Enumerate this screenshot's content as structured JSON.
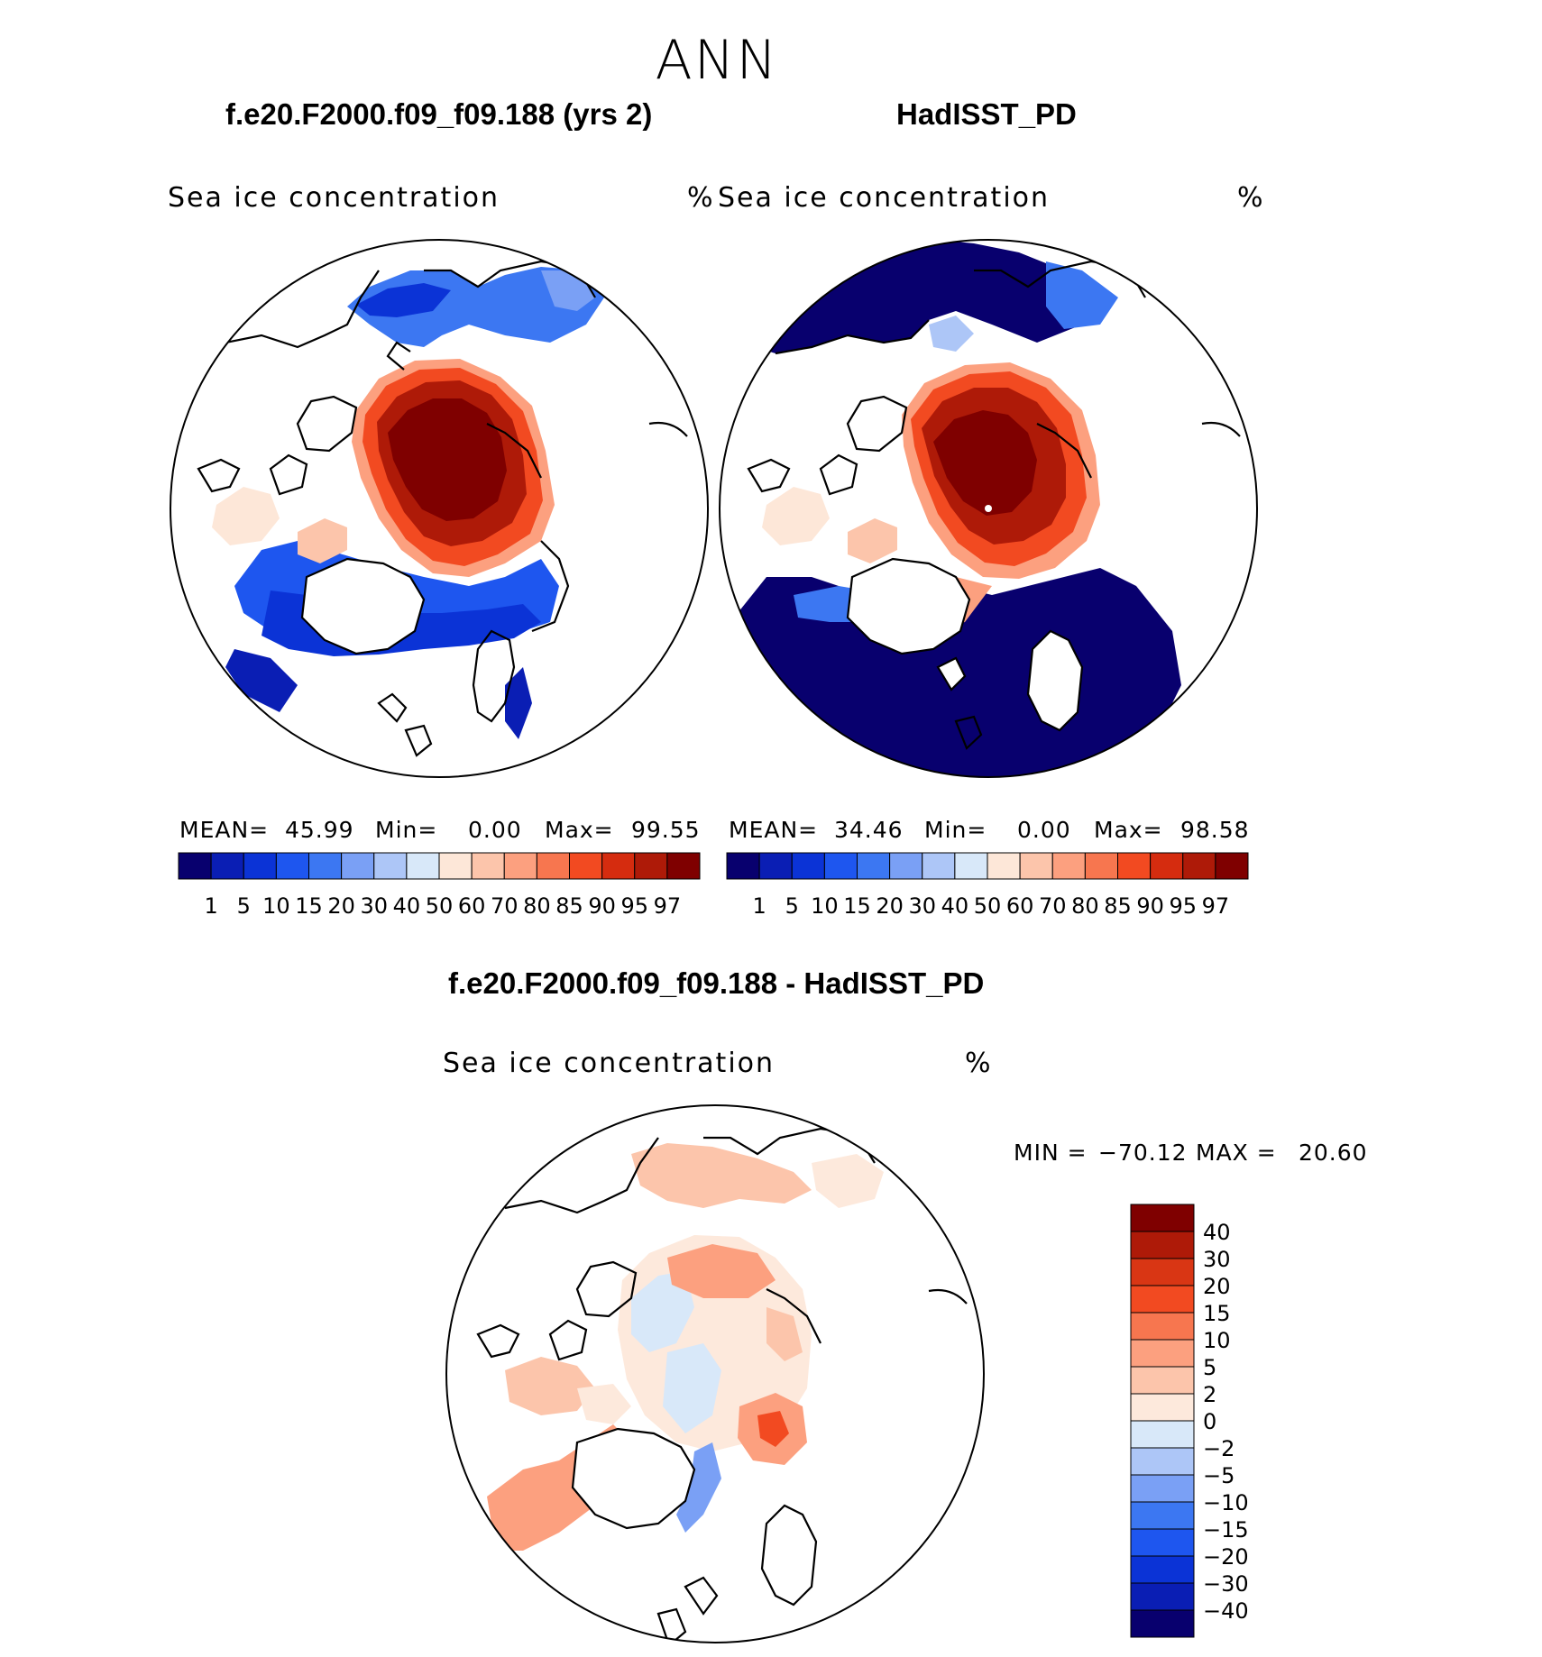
{
  "season": "ANN",
  "top_left": {
    "title": "f.e20.F2000.f09_f09.188 (yrs 2)",
    "variable": "Sea ice concentration",
    "units": "%",
    "mean_label": "MEAN=",
    "mean": "45.99",
    "min_label": "Min=",
    "min": "0.00",
    "max_label": "Max=",
    "max": "99.55"
  },
  "top_right": {
    "title": "HadISST_PD",
    "variable": "Sea ice concentration",
    "units": "%",
    "mean_label": "MEAN=",
    "mean": "34.46",
    "min_label": "Min=",
    "min": "0.00",
    "max_label": "Max=",
    "max": "98.58"
  },
  "bottom": {
    "title": "f.e20.F2000.f09_f09.188 - HadISST_PD",
    "variable": "Sea ice concentration",
    "units": "%",
    "min_label": "MIN =",
    "min": "−70.12",
    "max_label": "MAX =",
    "max": "20.60"
  },
  "colorbar_abs": {
    "labels": [
      "1",
      "5",
      "10",
      "15",
      "20",
      "30",
      "40",
      "50",
      "60",
      "70",
      "80",
      "85",
      "90",
      "95",
      "97"
    ],
    "colors": [
      "#08006e",
      "#0a1eb4",
      "#0b33d6",
      "#1e56ef",
      "#3c77f2",
      "#7aa0f5",
      "#adc6f7",
      "#d8e8f9",
      "#fde7d8",
      "#fcc5ab",
      "#fca07f",
      "#f7764f",
      "#f24a21",
      "#d52c0f",
      "#ae1a08",
      "#7f0000"
    ]
  },
  "colorbar_diff": {
    "labels": [
      "40",
      "30",
      "20",
      "15",
      "10",
      "5",
      "2",
      "0",
      "−2",
      "−5",
      "−10",
      "−15",
      "−20",
      "−30",
      "−40"
    ],
    "colors": [
      "#7f0000",
      "#ae1a08",
      "#d93614",
      "#f24a21",
      "#f7764f",
      "#fca07f",
      "#fcc5ab",
      "#fde9dc",
      "#d8e8f9",
      "#adc6f7",
      "#7aa0f5",
      "#3c77f2",
      "#1e56ef",
      "#0b33d6",
      "#0a1eb4",
      "#08006e"
    ]
  }
}
